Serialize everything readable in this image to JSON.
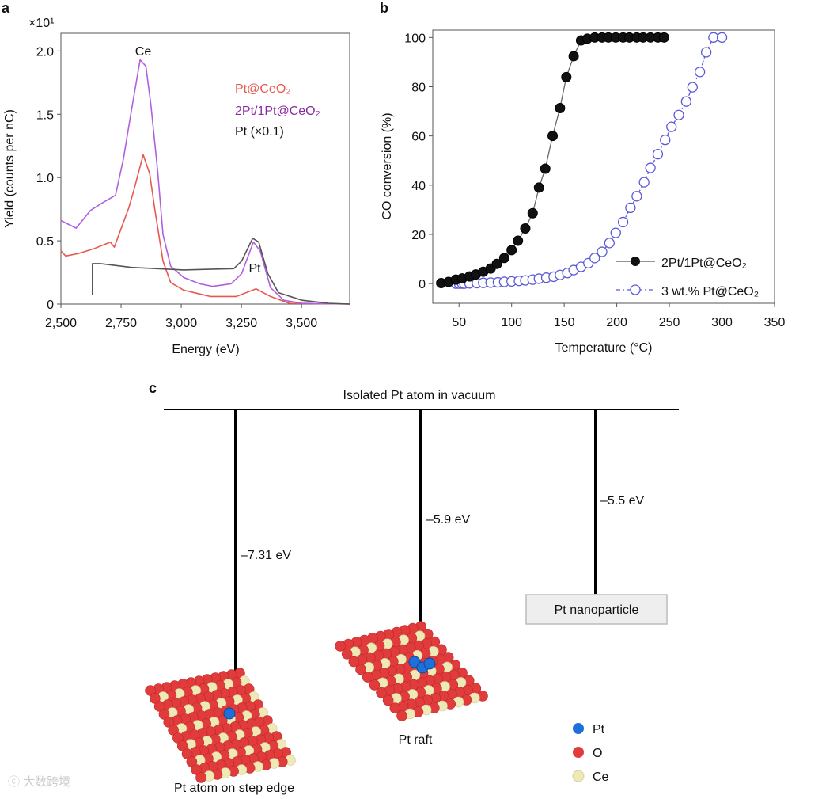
{
  "panels": {
    "a": "a",
    "b": "b",
    "c": "c"
  },
  "chart_data": [
    {
      "type": "line",
      "panel": "a",
      "xlabel": "Energy (eV)",
      "ylabel": "Yield (counts per nC)",
      "y_multiplier": "×10¹",
      "xlim": [
        2500,
        3700
      ],
      "ylim": [
        0,
        2.14
      ],
      "xticks": [
        2500,
        2750,
        3000,
        3250,
        3500
      ],
      "xtick_labels": [
        "2,500",
        "2,750",
        "3,000",
        "3,250",
        "3,500"
      ],
      "yticks": [
        0,
        0.5,
        1.0,
        1.5,
        2.0
      ],
      "ytick_labels": [
        "0",
        "0.5",
        "1.0",
        "1.5",
        "2.0"
      ],
      "annotations": [
        "Ce",
        "Pt"
      ],
      "legend_position": "top-right",
      "colors": {
        "Pt@CeO2": "#e8584f",
        "2Pt/1Pt@CeO2": "#b05fe0",
        "Pt": "#555555"
      },
      "series": [
        {
          "name": "Pt@CeO₂",
          "label_color": "#e8584f",
          "color": "#e8584f",
          "x": [
            2500,
            2520,
            2574,
            2640,
            2705,
            2722,
            2749,
            2782,
            2803,
            2842,
            2869,
            2891,
            2924,
            2956,
            3010,
            3120,
            3229,
            3311,
            3371,
            3448,
            3700
          ],
          "y": [
            0.42,
            0.38,
            0.4,
            0.44,
            0.49,
            0.45,
            0.59,
            0.76,
            0.9,
            1.18,
            1.03,
            0.74,
            0.34,
            0.17,
            0.11,
            0.06,
            0.06,
            0.12,
            0.06,
            0.006,
            0
          ]
        },
        {
          "name": "2Pt/1Pt@CeO₂",
          "label_color": "#8a2aa0",
          "color": "#b05fe0",
          "x": [
            2500,
            2563,
            2623,
            2673,
            2727,
            2760,
            2793,
            2829,
            2853,
            2874,
            2902,
            2924,
            2956,
            3010,
            3076,
            3131,
            3207,
            3251,
            3300,
            3328,
            3371,
            3426,
            3502,
            3700
          ],
          "y": [
            0.66,
            0.6,
            0.74,
            0.8,
            0.86,
            1.15,
            1.53,
            1.93,
            1.88,
            1.57,
            1.05,
            0.55,
            0.3,
            0.21,
            0.16,
            0.14,
            0.16,
            0.24,
            0.49,
            0.42,
            0.13,
            0.03,
            0.006,
            0
          ]
        },
        {
          "name": "Pt (×0.1)",
          "label_color": "#111111",
          "color": "#555555",
          "x": [
            2631,
            2631,
            2662,
            2793,
            3010,
            3218,
            3251,
            3297,
            3322,
            3360,
            3404,
            3502,
            3611,
            3700
          ],
          "y": [
            0.07,
            0.32,
            0.32,
            0.29,
            0.27,
            0.28,
            0.34,
            0.52,
            0.49,
            0.24,
            0.09,
            0.03,
            0.006,
            0
          ]
        }
      ]
    },
    {
      "type": "scatter",
      "panel": "b",
      "xlabel": "Temperature (°C)",
      "ylabel": "CO conversion (%)",
      "xlim": [
        25,
        350
      ],
      "ylim": [
        -8,
        103
      ],
      "xticks": [
        50,
        100,
        150,
        200,
        250,
        300,
        350
      ],
      "xtick_labels": [
        "50",
        "100",
        "150",
        "200",
        "250",
        "300",
        "350"
      ],
      "yticks": [
        0,
        20,
        40,
        60,
        80,
        100
      ],
      "ytick_labels": [
        "0",
        "20",
        "40",
        "60",
        "80",
        "100"
      ],
      "legend_position": "bottom-right",
      "series": [
        {
          "name": "2Pt/1Pt@CeO₂",
          "marker": "filled-circle",
          "line": "solid",
          "color": "#111111",
          "x": [
            33,
            40,
            47,
            53,
            60,
            66,
            73,
            80,
            86,
            93,
            100,
            106,
            113,
            120,
            126,
            132,
            139,
            146,
            152,
            159,
            166,
            172,
            179,
            186,
            192,
            199,
            206,
            212,
            219,
            225,
            232,
            239,
            245
          ],
          "y": [
            0.2,
            0.7,
            1.6,
            2.1,
            2.9,
            3.7,
            4.8,
            6.1,
            8,
            10.4,
            13.6,
            17.4,
            22.4,
            28.6,
            39,
            46.7,
            60,
            71.3,
            83.9,
            92.4,
            98.8,
            99.5,
            100,
            100,
            100,
            100,
            100,
            100,
            100,
            100,
            100,
            100,
            100
          ]
        },
        {
          "name": "3 wt.% Pt@CeO₂",
          "marker": "open-circle",
          "line": "dash-dot",
          "color": "#5a5ad6",
          "x": [
            47,
            50,
            53,
            55,
            60,
            67,
            73,
            80,
            87,
            93,
            100,
            107,
            113,
            120,
            126,
            133,
            140,
            146,
            153,
            159,
            166,
            173,
            179,
            186,
            193,
            199,
            206,
            213,
            219,
            226,
            232,
            239,
            246,
            252,
            259,
            266,
            272,
            279,
            285,
            292,
            300
          ],
          "y": [
            0,
            0,
            0,
            0,
            0.1,
            0.2,
            0.3,
            0.4,
            0.5,
            0.7,
            0.9,
            1.1,
            1.3,
            1.6,
            2.0,
            2.4,
            2.8,
            3.5,
            4.3,
            5.5,
            6.8,
            8.3,
            10.4,
            12.9,
            16.5,
            20.6,
            25,
            30.8,
            35.5,
            41.2,
            47,
            52.6,
            58.4,
            63.7,
            68.5,
            74,
            79.8,
            86,
            94,
            100,
            100
          ]
        }
      ]
    }
  ],
  "diagram": {
    "top_level_label": "Isolated Pt atom in vacuum",
    "levels": [
      {
        "energy": "–7.31 eV",
        "value": -7.31,
        "label": "Pt atom on step edge"
      },
      {
        "energy": "–5.9 eV",
        "value": -5.9,
        "label": "Pt raft"
      },
      {
        "energy": "–5.5 eV",
        "value": -5.5,
        "label": "Pt nanoparticle"
      }
    ],
    "legend": [
      {
        "label": "Pt",
        "color": "#1e6fd9"
      },
      {
        "label": "O",
        "color": "#e23b3b"
      },
      {
        "label": "Ce",
        "color": "#efe9b8"
      }
    ]
  },
  "watermark": "大数跨境"
}
